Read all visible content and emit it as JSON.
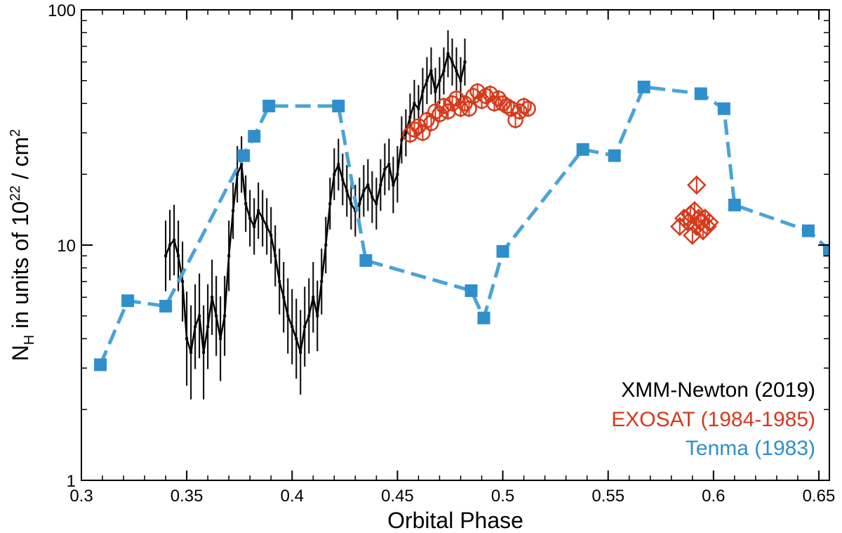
{
  "chart_data": {
    "type": "scatter",
    "xlabel": "Orbital Phase",
    "ylabel": "N_H in units of 10^22 / cm^2",
    "ylabel_parts": {
      "pre": "N",
      "sub": "H",
      "mid": " in units of 10",
      "sup": "22",
      "post": " / cm",
      "sup2": "2"
    },
    "xlim": [
      0.3,
      0.655
    ],
    "ylim": [
      1,
      100
    ],
    "yscale": "log",
    "xticks": [
      {
        "v": 0.3,
        "label": "0.3"
      },
      {
        "v": 0.35,
        "label": "0.35"
      },
      {
        "v": 0.4,
        "label": "0.4"
      },
      {
        "v": 0.45,
        "label": "0.45"
      },
      {
        "v": 0.5,
        "label": "0.5"
      },
      {
        "v": 0.55,
        "label": "0.55"
      },
      {
        "v": 0.6,
        "label": "0.6"
      },
      {
        "v": 0.65,
        "label": "0.65"
      }
    ],
    "yticks": [
      {
        "v": 1,
        "label": "1"
      },
      {
        "v": 10,
        "label": "10"
      },
      {
        "v": 100,
        "label": "100"
      }
    ],
    "legend_position": "bottom-right",
    "series": [
      {
        "name": "XMM-Newton (2019)",
        "color": "#000000",
        "marker": "errorbar-line",
        "x": [
          0.34,
          0.342,
          0.344,
          0.346,
          0.348,
          0.35,
          0.352,
          0.354,
          0.356,
          0.358,
          0.36,
          0.362,
          0.364,
          0.366,
          0.368,
          0.37,
          0.372,
          0.374,
          0.376,
          0.378,
          0.38,
          0.382,
          0.384,
          0.386,
          0.388,
          0.39,
          0.392,
          0.394,
          0.396,
          0.398,
          0.4,
          0.402,
          0.404,
          0.406,
          0.408,
          0.41,
          0.412,
          0.414,
          0.416,
          0.418,
          0.42,
          0.422,
          0.424,
          0.426,
          0.428,
          0.43,
          0.432,
          0.434,
          0.436,
          0.438,
          0.44,
          0.442,
          0.444,
          0.446,
          0.448,
          0.45,
          0.452,
          0.454,
          0.456,
          0.458,
          0.46,
          0.462,
          0.464,
          0.466,
          0.468,
          0.47,
          0.472,
          0.474,
          0.476,
          0.478,
          0.48,
          0.482
        ],
        "y": [
          9,
          10,
          10.5,
          9,
          7,
          4,
          3.5,
          4.5,
          5,
          3.5,
          4.5,
          6,
          5,
          4,
          5,
          9,
          14,
          20,
          22,
          15,
          13,
          12,
          14,
          13,
          12,
          11,
          9,
          7,
          6,
          5,
          4.5,
          4,
          3.5,
          4.5,
          5,
          6,
          5,
          7,
          10,
          15,
          20,
          22,
          19,
          17,
          15,
          14,
          15,
          17,
          18,
          16,
          15,
          18,
          21,
          22,
          18,
          20,
          28,
          30,
          35,
          40,
          38,
          45,
          50,
          55,
          45,
          50,
          55,
          65,
          60,
          55,
          50,
          60
        ],
        "err": [
          0.15,
          0.15,
          0.15,
          0.15,
          0.17,
          0.2,
          0.2,
          0.18,
          0.18,
          0.2,
          0.18,
          0.16,
          0.17,
          0.18,
          0.17,
          0.15,
          0.12,
          0.12,
          0.12,
          0.12,
          0.12,
          0.12,
          0.12,
          0.12,
          0.12,
          0.12,
          0.13,
          0.14,
          0.15,
          0.16,
          0.16,
          0.17,
          0.18,
          0.17,
          0.16,
          0.15,
          0.15,
          0.14,
          0.12,
          0.11,
          0.11,
          0.11,
          0.11,
          0.11,
          0.11,
          0.11,
          0.11,
          0.11,
          0.11,
          0.11,
          0.11,
          0.11,
          0.11,
          0.11,
          0.12,
          0.12,
          0.1,
          0.1,
          0.1,
          0.1,
          0.1,
          0.1,
          0.1,
          0.1,
          0.1,
          0.1,
          0.1,
          0.1,
          0.1,
          0.1,
          0.1,
          0.1
        ]
      },
      {
        "name": "EXOSAT (1984-1985)",
        "color": "#d6391a",
        "marker": "circle",
        "x": [
          0.456,
          0.458,
          0.46,
          0.462,
          0.464,
          0.466,
          0.468,
          0.47,
          0.472,
          0.474,
          0.476,
          0.478,
          0.48,
          0.482,
          0.484,
          0.486,
          0.488,
          0.49,
          0.492,
          0.494,
          0.496,
          0.498,
          0.5,
          0.502,
          0.504,
          0.506,
          0.508,
          0.51,
          0.512
        ],
        "y": [
          29.5,
          31,
          32,
          30,
          34,
          33,
          37,
          36,
          39,
          37,
          40,
          42,
          38,
          40,
          38,
          43,
          45,
          41,
          43,
          44,
          40,
          42,
          40,
          39,
          38,
          34,
          37,
          39,
          38
        ],
        "group": "circles"
      },
      {
        "name": "EXOSAT (1984-1985)",
        "color": "#d6391a",
        "marker": "diamond",
        "x": [
          0.584,
          0.586,
          0.588,
          0.589,
          0.59,
          0.591,
          0.592,
          0.592,
          0.593,
          0.594,
          0.595,
          0.596,
          0.597,
          0.598
        ],
        "y": [
          12,
          13,
          12.5,
          13.5,
          11,
          14,
          12,
          18,
          13,
          12.5,
          11.5,
          13,
          12,
          12.5
        ],
        "group": "diamonds"
      },
      {
        "name": "Tenma (1983)",
        "color": "#2f8fcb",
        "marker": "square",
        "x": [
          0.309,
          0.322,
          0.34,
          0.377,
          0.382,
          0.389,
          0.422,
          0.435,
          0.485,
          0.491,
          0.5,
          0.538,
          0.553,
          0.567,
          0.594,
          0.605,
          0.61,
          0.645,
          0.655
        ],
        "y": [
          3.1,
          5.8,
          5.5,
          24,
          29,
          39,
          39,
          8.6,
          6.4,
          4.9,
          9.4,
          25.5,
          24,
          47,
          44,
          38,
          14.8,
          11.5,
          9.5
        ]
      }
    ],
    "legend": [
      {
        "label": "XMM-Newton (2019)",
        "color": "#000000"
      },
      {
        "label": "EXOSAT (1984-1985)",
        "color": "#d6391a"
      },
      {
        "label": "Tenma (1983)",
        "color": "#2f8fcb"
      }
    ]
  }
}
